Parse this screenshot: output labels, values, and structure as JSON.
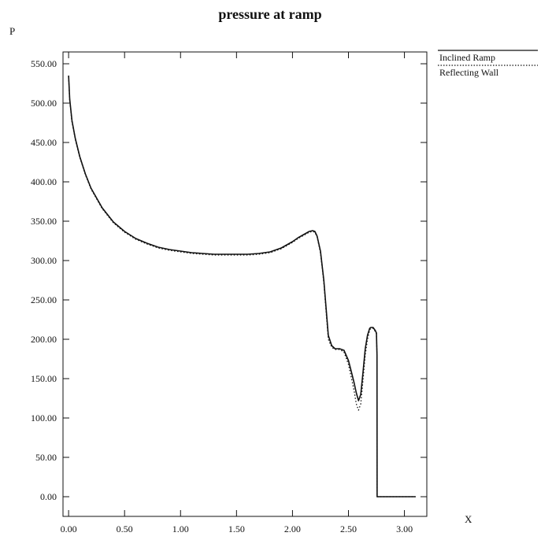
{
  "chart_data": {
    "type": "line",
    "title": "pressure at ramp",
    "xlabel": "X",
    "ylabel": "P",
    "xlim": [
      -0.05,
      3.2
    ],
    "ylim": [
      -25,
      565
    ],
    "xticks": [
      0.0,
      0.5,
      1.0,
      1.5,
      2.0,
      2.5,
      3.0
    ],
    "xtick_labels": [
      "0.00",
      "0.50",
      "1.00",
      "1.50",
      "2.00",
      "2.50",
      "3.00"
    ],
    "yticks": [
      0,
      50,
      100,
      150,
      200,
      250,
      300,
      350,
      400,
      450,
      500,
      550
    ],
    "ytick_labels": [
      "0.00",
      "50.00",
      "100.00",
      "150.00",
      "200.00",
      "250.00",
      "300.00",
      "350.00",
      "400.00",
      "450.00",
      "500.00",
      "550.00"
    ],
    "grid": false,
    "legend_position": "outside-right-top",
    "series": [
      {
        "name": "Inclined Ramp",
        "style": "solid",
        "color": "#111111",
        "x": [
          0.0,
          0.01,
          0.03,
          0.06,
          0.1,
          0.15,
          0.2,
          0.3,
          0.4,
          0.5,
          0.6,
          0.7,
          0.8,
          0.9,
          1.0,
          1.1,
          1.2,
          1.3,
          1.4,
          1.5,
          1.6,
          1.7,
          1.8,
          1.9,
          2.0,
          2.05,
          2.1,
          2.15,
          2.18,
          2.2,
          2.22,
          2.25,
          2.28,
          2.3,
          2.32,
          2.35,
          2.38,
          2.42,
          2.46,
          2.5,
          2.52,
          2.55,
          2.57,
          2.59,
          2.61,
          2.63,
          2.65,
          2.67,
          2.69,
          2.7,
          2.72,
          2.74,
          2.75,
          2.755,
          2.756,
          2.76,
          3.1
        ],
        "y": [
          535,
          505,
          478,
          455,
          432,
          410,
          392,
          367,
          349,
          337,
          328,
          322,
          317,
          314,
          312,
          310,
          309,
          308,
          308,
          308,
          308,
          309,
          311,
          316,
          324,
          329,
          333,
          337,
          338,
          337,
          331,
          312,
          275,
          240,
          205,
          192,
          188,
          188,
          186,
          173,
          162,
          145,
          132,
          122,
          130,
          158,
          188,
          205,
          214,
          215,
          215,
          211,
          208,
          180,
          0,
          0,
          0
        ]
      },
      {
        "name": "Reflecting Wall",
        "style": "dotted",
        "color": "#111111",
        "x": [
          0.0,
          0.01,
          0.03,
          0.06,
          0.1,
          0.15,
          0.2,
          0.3,
          0.4,
          0.5,
          0.6,
          0.7,
          0.8,
          0.9,
          1.0,
          1.1,
          1.2,
          1.3,
          1.4,
          1.5,
          1.6,
          1.7,
          1.8,
          1.9,
          2.0,
          2.05,
          2.1,
          2.15,
          2.18,
          2.2,
          2.22,
          2.25,
          2.28,
          2.3,
          2.32,
          2.35,
          2.38,
          2.42,
          2.46,
          2.5,
          2.52,
          2.55,
          2.57,
          2.59,
          2.61,
          2.63,
          2.65,
          2.67,
          2.69,
          2.7,
          2.72,
          2.74,
          2.75,
          2.755,
          2.756,
          2.76,
          3.1
        ],
        "y": [
          533,
          503,
          476,
          454,
          431,
          409,
          391,
          366,
          348,
          336,
          327,
          321,
          316,
          313,
          311,
          309,
          308,
          307,
          307,
          307,
          307,
          308,
          310,
          315,
          323,
          328,
          332,
          336,
          337,
          336,
          330,
          310,
          272,
          236,
          200,
          190,
          187,
          187,
          184,
          168,
          155,
          135,
          118,
          110,
          118,
          148,
          180,
          200,
          212,
          214,
          214,
          210,
          207,
          180,
          0,
          0,
          0
        ]
      }
    ]
  }
}
